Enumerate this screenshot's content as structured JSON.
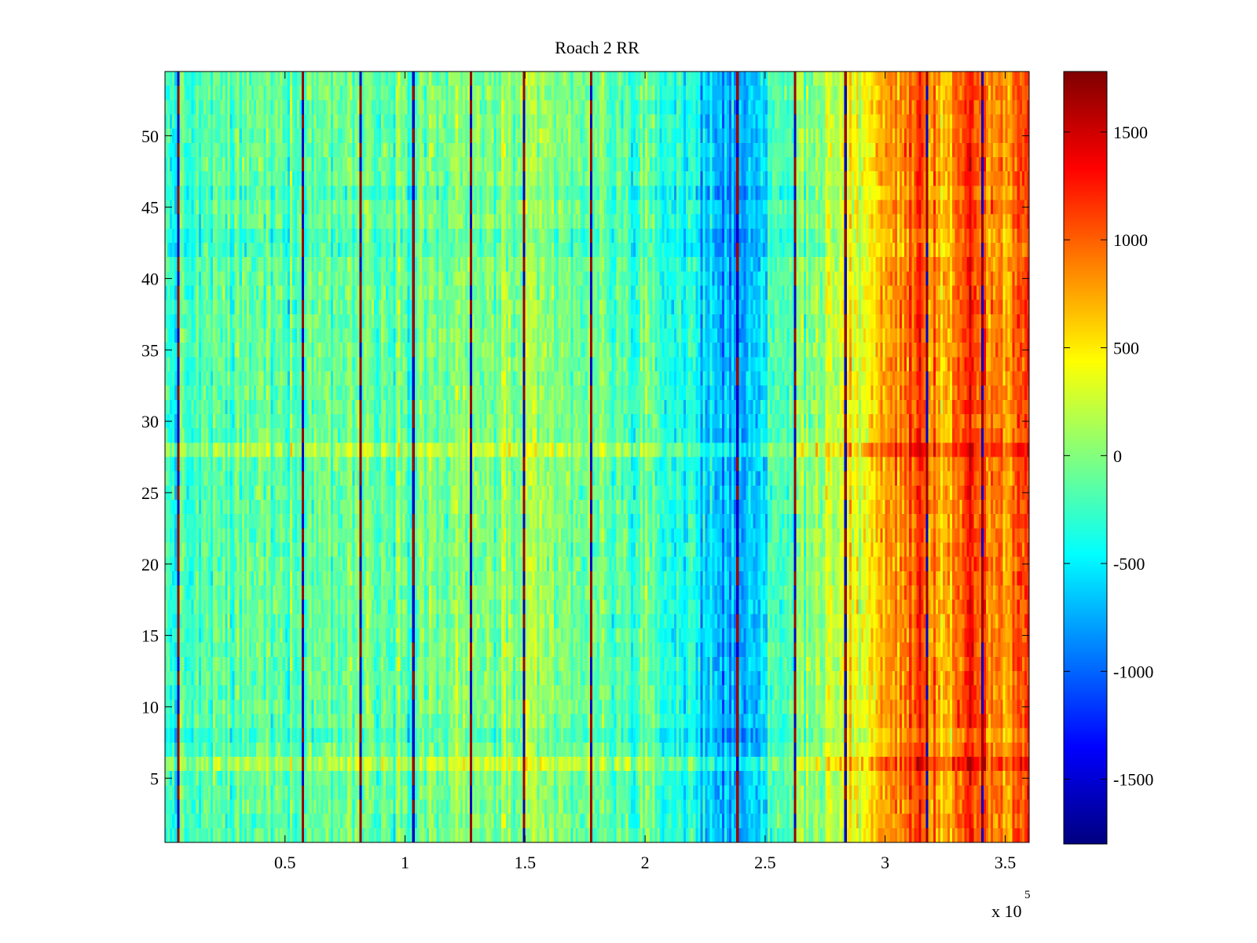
{
  "chart_data": {
    "type": "heatmap",
    "title": "Roach 2 RR",
    "xlabel": "",
    "ylabel": "",
    "x_multiplier_label": "x 10",
    "x_multiplier_exponent": "5",
    "xlim": [
      0,
      360000
    ],
    "ylim": [
      0.5,
      54.5
    ],
    "rows": 54,
    "x_ticks": [
      {
        "value": 50000,
        "label": "0.5"
      },
      {
        "value": 100000,
        "label": "1"
      },
      {
        "value": 150000,
        "label": "1.5"
      },
      {
        "value": 200000,
        "label": "2"
      },
      {
        "value": 250000,
        "label": "2.5"
      },
      {
        "value": 300000,
        "label": "3"
      },
      {
        "value": 350000,
        "label": "3.5"
      }
    ],
    "y_ticks": [
      {
        "value": 5,
        "label": "5"
      },
      {
        "value": 10,
        "label": "10"
      },
      {
        "value": 15,
        "label": "15"
      },
      {
        "value": 20,
        "label": "20"
      },
      {
        "value": 25,
        "label": "25"
      },
      {
        "value": 30,
        "label": "30"
      },
      {
        "value": 35,
        "label": "35"
      },
      {
        "value": 40,
        "label": "40"
      },
      {
        "value": 45,
        "label": "45"
      },
      {
        "value": 50,
        "label": "50"
      }
    ],
    "colorbar": {
      "colormap": "jet",
      "range": [
        -1800,
        1780
      ],
      "ticks": [
        {
          "value": 1500,
          "label": "1500"
        },
        {
          "value": 1000,
          "label": "1000"
        },
        {
          "value": 500,
          "label": "500"
        },
        {
          "value": 0,
          "label": "0"
        },
        {
          "value": -500,
          "label": "-500"
        },
        {
          "value": -1000,
          "label": "-1000"
        },
        {
          "value": -1500,
          "label": "-1500"
        }
      ]
    },
    "baseline_profile": [
      {
        "x": 0,
        "value": -300
      },
      {
        "x": 20000,
        "value": -200
      },
      {
        "x": 50000,
        "value": -100
      },
      {
        "x": 100000,
        "value": -50
      },
      {
        "x": 150000,
        "value": 0
      },
      {
        "x": 200000,
        "value": -200
      },
      {
        "x": 220000,
        "value": -400
      },
      {
        "x": 235000,
        "value": -800
      },
      {
        "x": 245000,
        "value": -600
      },
      {
        "x": 255000,
        "value": -300
      },
      {
        "x": 270000,
        "value": 100
      },
      {
        "x": 290000,
        "value": 400
      },
      {
        "x": 300000,
        "value": 700
      },
      {
        "x": 310000,
        "value": 1000
      },
      {
        "x": 315000,
        "value": 1100
      },
      {
        "x": 325000,
        "value": 700
      },
      {
        "x": 335000,
        "value": 1200
      },
      {
        "x": 340000,
        "value": 900
      },
      {
        "x": 350000,
        "value": 800
      },
      {
        "x": 360000,
        "value": 1200
      }
    ],
    "dark_stripes_x": [
      5000,
      57000,
      81000,
      103000,
      127000,
      149000,
      177000,
      238000,
      262000,
      283000,
      317000,
      340000
    ],
    "hot_rows": [
      6,
      28
    ],
    "cool_rows": [
      8,
      42,
      43,
      46
    ],
    "grid": false,
    "legend": "none"
  }
}
